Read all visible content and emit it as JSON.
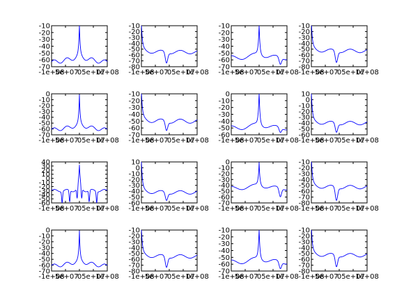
{
  "figure": {
    "line_color": "#0000ff",
    "axis_color": "#000000",
    "background": "#ffffff"
  },
  "chart_data": [
    {
      "type": "line",
      "panel": "r1c1",
      "shape": "centered",
      "xlim": [
        -100000000.0,
        100000000.0
      ],
      "ylim": [
        -70,
        -10
      ],
      "yticks": [
        -10,
        -20,
        -30,
        -40,
        -50,
        -60,
        -70
      ],
      "xticks": [
        "-1e+08",
        "-5e+07",
        "0",
        "5e+07",
        "1e+08"
      ],
      "baseline": -57,
      "peak": -14
    },
    {
      "type": "line",
      "panel": "r1c2",
      "shape": "left",
      "xlim": [
        -100000000.0,
        100000000.0
      ],
      "ylim": [
        -80,
        -10
      ],
      "yticks": [
        -10,
        -20,
        -30,
        -40,
        -50,
        -60,
        -70,
        -80
      ],
      "xticks": [
        "-1e+08",
        "-5e+07",
        "0",
        "5e+07",
        "1e+08"
      ],
      "baseline": -55,
      "peak": -14,
      "dip": -73
    },
    {
      "type": "line",
      "panel": "r1c3",
      "shape": "right",
      "xlim": [
        -100000000.0,
        100000000.0
      ],
      "ylim": [
        -70,
        -10
      ],
      "yticks": [
        -10,
        -20,
        -30,
        -40,
        -50,
        -60,
        -70
      ],
      "xticks": [
        "-1e+08",
        "-5e+07",
        "0",
        "5e+07",
        "1e+08"
      ],
      "baseline": -57,
      "peak": -14,
      "dip": -67
    },
    {
      "type": "line",
      "panel": "r1c4",
      "shape": "left",
      "xlim": [
        -100000000.0,
        100000000.0
      ],
      "ylim": [
        -80,
        -10
      ],
      "yticks": [
        -10,
        -20,
        -30,
        -40,
        -50,
        -60,
        -70,
        -80
      ],
      "xticks": [
        "-1e+08",
        "-5e+07",
        "0",
        "5e+07",
        "1e+08"
      ],
      "baseline": -53,
      "peak": -10,
      "dip": -72
    },
    {
      "type": "line",
      "panel": "r2c1",
      "shape": "centered",
      "xlim": [
        -100000000.0,
        100000000.0
      ],
      "ylim": [
        -70,
        0
      ],
      "yticks": [
        0,
        -10,
        -20,
        -30,
        -40,
        -50,
        -60,
        -70
      ],
      "xticks": [
        "-1e+08",
        "-5e+07",
        "0",
        "5e+07",
        "1e+08"
      ],
      "baseline": -55,
      "peak": -8
    },
    {
      "type": "line",
      "panel": "r2c2",
      "shape": "left",
      "xlim": [
        -100000000.0,
        100000000.0
      ],
      "ylim": [
        -70,
        -10
      ],
      "yticks": [
        -10,
        -20,
        -30,
        -40,
        -50,
        -60,
        -70
      ],
      "xticks": [
        "-1e+08",
        "-5e+07",
        "0",
        "5e+07",
        "1e+08"
      ],
      "baseline": -50,
      "peak": -14,
      "dip": -63
    },
    {
      "type": "line",
      "panel": "r2c3",
      "shape": "right",
      "xlim": [
        -100000000.0,
        100000000.0
      ],
      "ylim": [
        -60,
        0
      ],
      "yticks": [
        0,
        -10,
        -20,
        -30,
        -40,
        -50,
        -60
      ],
      "xticks": [
        "-1e+08",
        "-5e+07",
        "0",
        "5e+07",
        "1e+08"
      ],
      "baseline": -50,
      "peak": -2,
      "dip": -57
    },
    {
      "type": "line",
      "panel": "r2c4",
      "shape": "left",
      "xlim": [
        -100000000.0,
        100000000.0
      ],
      "ylim": [
        -60,
        10
      ],
      "yticks": [
        10,
        0,
        -10,
        -20,
        -30,
        -40,
        -50,
        -60
      ],
      "xticks": [
        "-1e+08",
        "-5e+07",
        "0",
        "5e+07",
        "1e+08"
      ],
      "baseline": -40,
      "peak": 5,
      "dip": -55
    },
    {
      "type": "line",
      "panel": "r3c1",
      "shape": "centered-deep",
      "xlim": [
        -100000000.0,
        100000000.0
      ],
      "ylim": [
        -60,
        40
      ],
      "yticks": [
        40,
        30,
        20,
        10,
        0,
        -10,
        -20,
        -30,
        -40,
        -50,
        -60
      ],
      "xticks": [
        "-1e+08",
        "-5e+07",
        "0",
        "5e+07",
        "1e+08"
      ],
      "baseline": -30,
      "peak": 30,
      "dip": -58
    },
    {
      "type": "line",
      "panel": "r3c2",
      "shape": "left",
      "xlim": [
        -100000000.0,
        100000000.0
      ],
      "ylim": [
        -60,
        10
      ],
      "yticks": [
        10,
        0,
        -10,
        -20,
        -30,
        -40,
        -50,
        -60
      ],
      "xticks": [
        "-1e+08",
        "-5e+07",
        "0",
        "5e+07",
        "1e+08"
      ],
      "baseline": -42,
      "peak": 5,
      "dip": -55
    },
    {
      "type": "line",
      "panel": "r3c3",
      "shape": "right",
      "xlim": [
        -100000000.0,
        100000000.0
      ],
      "ylim": [
        -70,
        0
      ],
      "yticks": [
        0,
        -10,
        -20,
        -30,
        -40,
        -50,
        -60,
        -70
      ],
      "xticks": [
        "-1e+08",
        "-5e+07",
        "0",
        "5e+07",
        "1e+08"
      ],
      "baseline": -45,
      "peak": -8,
      "dip": -60
    },
    {
      "type": "line",
      "panel": "r3c4",
      "shape": "left",
      "xlim": [
        -100000000.0,
        100000000.0
      ],
      "ylim": [
        -80,
        -10
      ],
      "yticks": [
        -10,
        -20,
        -30,
        -40,
        -50,
        -60,
        -70,
        -80
      ],
      "xticks": [
        "-1e+08",
        "-5e+07",
        "0",
        "5e+07",
        "1e+08"
      ],
      "baseline": -53,
      "peak": -10,
      "dip": -75
    },
    {
      "type": "line",
      "panel": "r4c1",
      "shape": "centered",
      "xlim": [
        -100000000.0,
        100000000.0
      ],
      "ylim": [
        -70,
        0
      ],
      "yticks": [
        0,
        -10,
        -20,
        -30,
        -40,
        -50,
        -60,
        -70
      ],
      "xticks": [
        "-1e+08",
        "-5e+07",
        "0",
        "5e+07",
        "1e+08"
      ],
      "baseline": -55,
      "peak": -8
    },
    {
      "type": "line",
      "panel": "r4c2",
      "shape": "left",
      "xlim": [
        -100000000.0,
        100000000.0
      ],
      "ylim": [
        -80,
        -10
      ],
      "yticks": [
        -10,
        -20,
        -30,
        -40,
        -50,
        -60,
        -70,
        -80
      ],
      "xticks": [
        "-1e+08",
        "-5e+07",
        "0",
        "5e+07",
        "1e+08"
      ],
      "baseline": -55,
      "peak": -14,
      "dip": -73
    },
    {
      "type": "line",
      "panel": "r4c3",
      "shape": "right",
      "xlim": [
        -100000000.0,
        100000000.0
      ],
      "ylim": [
        -70,
        -10
      ],
      "yticks": [
        -10,
        -20,
        -30,
        -40,
        -50,
        -60,
        -70
      ],
      "xticks": [
        "-1e+08",
        "-5e+07",
        "0",
        "5e+07",
        "1e+08"
      ],
      "baseline": -57,
      "peak": -14,
      "dip": -67
    },
    {
      "type": "line",
      "panel": "r4c4",
      "shape": "left",
      "xlim": [
        -100000000.0,
        100000000.0
      ],
      "ylim": [
        -80,
        -10
      ],
      "yticks": [
        -10,
        -20,
        -30,
        -40,
        -50,
        -60,
        -70,
        -80
      ],
      "xticks": [
        "-1e+08",
        "-5e+07",
        "0",
        "5e+07",
        "1e+08"
      ],
      "baseline": -53,
      "peak": -10,
      "dip": -72
    }
  ]
}
